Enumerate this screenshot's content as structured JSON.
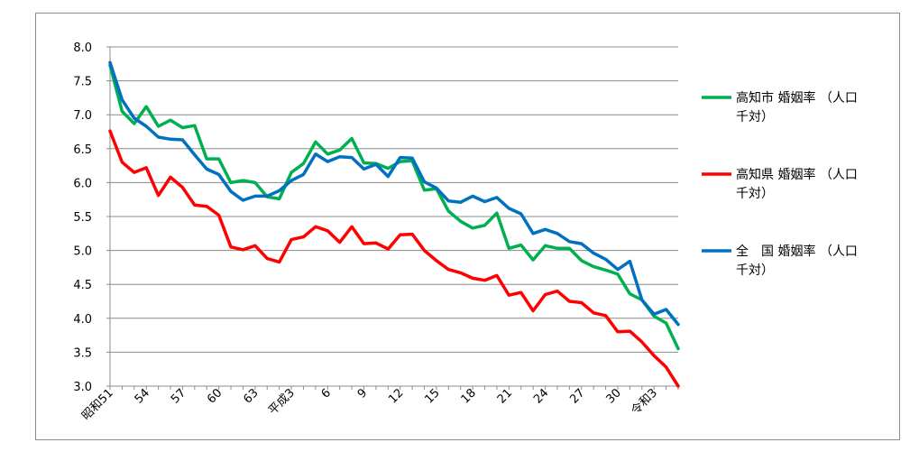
{
  "chart_data": {
    "type": "line",
    "title": "",
    "xlabel": "",
    "ylabel": "",
    "ylim": [
      3.0,
      8.0
    ],
    "y_ticks": [
      "8.0",
      "7.5",
      "7.0",
      "6.5",
      "6.0",
      "5.5",
      "5.0",
      "4.5",
      "4.0",
      "3.5",
      "3.0"
    ],
    "x_tick_labels": [
      "昭和51",
      "54",
      "57",
      "60",
      "63",
      "平成3",
      "6",
      "9",
      "12",
      "15",
      "18",
      "21",
      "24",
      "27",
      "30",
      "令和3"
    ],
    "x_tick_positions": [
      0,
      3,
      6,
      9,
      12,
      15,
      18,
      21,
      24,
      27,
      30,
      33,
      36,
      39,
      42,
      45
    ],
    "grid": true,
    "legend_position": "right",
    "series": [
      {
        "name_line1": "高知市 婚姻率 （人口",
        "name_line2": "千対）",
        "color": "#00b050",
        "values": [
          7.73,
          7.05,
          6.87,
          7.12,
          6.83,
          6.92,
          6.81,
          6.84,
          6.35,
          6.35,
          6.0,
          6.03,
          6.0,
          5.79,
          5.76,
          6.15,
          6.28,
          6.6,
          6.42,
          6.48,
          6.65,
          6.29,
          6.28,
          6.21,
          6.31,
          6.32,
          5.89,
          5.91,
          5.58,
          5.43,
          5.33,
          5.37,
          5.55,
          5.03,
          5.08,
          4.86,
          5.07,
          5.03,
          5.03,
          4.85,
          4.76,
          4.71,
          4.65,
          4.36,
          4.27,
          4.03,
          3.93,
          3.55
        ]
      },
      {
        "name_line1": "高知県 婚姻率 （人口",
        "name_line2": "千対）",
        "color": "#ff0000",
        "values": [
          6.76,
          6.3,
          6.15,
          6.22,
          5.81,
          6.08,
          5.93,
          5.67,
          5.65,
          5.52,
          5.05,
          5.01,
          5.07,
          4.88,
          4.83,
          5.16,
          5.2,
          5.35,
          5.29,
          5.12,
          5.35,
          5.1,
          5.11,
          5.02,
          5.23,
          5.24,
          5.0,
          4.85,
          4.72,
          4.67,
          4.59,
          4.56,
          4.63,
          4.34,
          4.38,
          4.11,
          4.35,
          4.4,
          4.25,
          4.23,
          4.08,
          4.04,
          3.8,
          3.81,
          3.65,
          3.45,
          3.28,
          3.0
        ]
      },
      {
        "name_line1": "全　国 婚姻率 （人口",
        "name_line2": "千対）",
        "color": "#0070c0",
        "values": [
          7.77,
          7.22,
          6.95,
          6.83,
          6.67,
          6.64,
          6.63,
          6.41,
          6.2,
          6.12,
          5.87,
          5.74,
          5.8,
          5.8,
          5.88,
          6.03,
          6.12,
          6.42,
          6.31,
          6.38,
          6.37,
          6.2,
          6.27,
          6.09,
          6.37,
          6.36,
          6.01,
          5.92,
          5.73,
          5.71,
          5.8,
          5.72,
          5.78,
          5.62,
          5.54,
          5.25,
          5.31,
          5.25,
          5.13,
          5.1,
          4.96,
          4.87,
          4.72,
          4.84,
          4.27,
          4.06,
          4.13,
          3.91
        ]
      }
    ]
  }
}
